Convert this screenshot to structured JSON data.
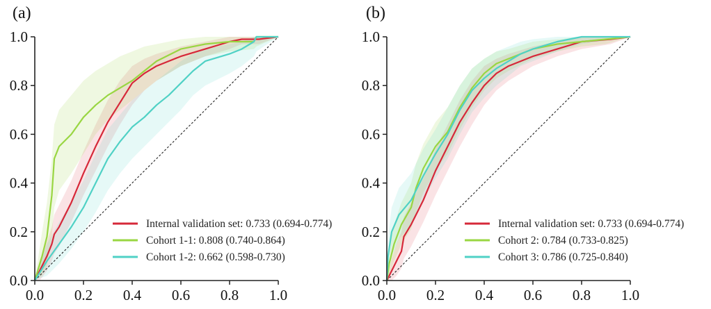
{
  "chart_data": [
    {
      "type": "line",
      "panel_label": "(a)",
      "title": "",
      "xlabel": "",
      "ylabel": "",
      "xlim": [
        0,
        1
      ],
      "ylim": [
        0,
        1
      ],
      "xticks": [
        "0.0",
        "0.2",
        "0.4",
        "0.6",
        "0.8",
        "1.0"
      ],
      "yticks": [
        "0.0",
        "0.2",
        "0.4",
        "0.6",
        "0.8",
        "1.0"
      ],
      "grid": false,
      "legend_position": "bottom-right",
      "reference_line": "diagonal-dashed",
      "series": [
        {
          "name": "Internal validation set: 0.733 (0.694-0.774)",
          "color": "#d62839",
          "x": [
            0,
            0.02,
            0.05,
            0.07,
            0.08,
            0.1,
            0.15,
            0.2,
            0.25,
            0.3,
            0.35,
            0.4,
            0.45,
            0.5,
            0.6,
            0.7,
            0.8,
            0.85,
            0.92,
            1
          ],
          "y": [
            0,
            0.04,
            0.1,
            0.15,
            0.19,
            0.22,
            0.32,
            0.44,
            0.55,
            0.65,
            0.73,
            0.81,
            0.85,
            0.88,
            0.92,
            0.95,
            0.98,
            0.99,
            0.99,
            1
          ],
          "ci_lower": [
            0,
            0.0,
            0.04,
            0.08,
            0.11,
            0.14,
            0.24,
            0.35,
            0.45,
            0.55,
            0.64,
            0.72,
            0.78,
            0.82,
            0.88,
            0.92,
            0.95,
            0.97,
            0.97,
            1
          ],
          "ci_upper": [
            0,
            0.08,
            0.16,
            0.22,
            0.27,
            0.31,
            0.41,
            0.53,
            0.64,
            0.74,
            0.82,
            0.88,
            0.91,
            0.93,
            0.96,
            0.98,
            1,
            1,
            1,
            1
          ]
        },
        {
          "name": "Cohort 1-1: 0.808 (0.740-0.864)",
          "color": "#99d642",
          "x": [
            0,
            0.03,
            0.05,
            0.07,
            0.08,
            0.1,
            0.15,
            0.2,
            0.25,
            0.3,
            0.35,
            0.4,
            0.45,
            0.5,
            0.6,
            0.7,
            0.8,
            0.9,
            0.91,
            1
          ],
          "y": [
            0,
            0.1,
            0.18,
            0.35,
            0.5,
            0.55,
            0.6,
            0.67,
            0.72,
            0.76,
            0.79,
            0.82,
            0.86,
            0.9,
            0.95,
            0.97,
            0.98,
            0.98,
            1,
            1
          ],
          "ci_lower": [
            0,
            0.02,
            0.06,
            0.18,
            0.3,
            0.37,
            0.44,
            0.52,
            0.6,
            0.66,
            0.7,
            0.74,
            0.78,
            0.82,
            0.88,
            0.92,
            0.94,
            0.95,
            0.96,
            1
          ],
          "ci_upper": [
            0,
            0.2,
            0.32,
            0.5,
            0.64,
            0.7,
            0.76,
            0.82,
            0.86,
            0.89,
            0.92,
            0.94,
            0.96,
            0.97,
            0.99,
            1,
            1,
            1,
            1,
            1
          ]
        },
        {
          "name": "Cohort 1-2: 0.662 (0.598-0.730)",
          "color": "#4fd1c5",
          "x": [
            0,
            0.05,
            0.1,
            0.15,
            0.2,
            0.25,
            0.3,
            0.35,
            0.4,
            0.45,
            0.5,
            0.55,
            0.6,
            0.65,
            0.7,
            0.8,
            0.85,
            0.9,
            0.91,
            1
          ],
          "y": [
            0,
            0.08,
            0.15,
            0.22,
            0.3,
            0.4,
            0.5,
            0.57,
            0.63,
            0.67,
            0.72,
            0.76,
            0.81,
            0.86,
            0.9,
            0.93,
            0.95,
            0.98,
            1,
            1
          ],
          "ci_lower": [
            0,
            0.02,
            0.07,
            0.13,
            0.2,
            0.28,
            0.37,
            0.44,
            0.5,
            0.55,
            0.6,
            0.65,
            0.7,
            0.76,
            0.8,
            0.85,
            0.88,
            0.92,
            0.94,
            1
          ],
          "ci_upper": [
            0,
            0.15,
            0.24,
            0.32,
            0.41,
            0.52,
            0.62,
            0.68,
            0.74,
            0.78,
            0.82,
            0.86,
            0.9,
            0.93,
            0.95,
            0.97,
            0.98,
            1,
            1,
            1
          ]
        }
      ]
    },
    {
      "type": "line",
      "panel_label": "(b)",
      "title": "",
      "xlabel": "",
      "ylabel": "",
      "xlim": [
        0,
        1
      ],
      "ylim": [
        0,
        1
      ],
      "xticks": [
        "0.0",
        "0.2",
        "0.4",
        "0.6",
        "0.8",
        "1.0"
      ],
      "yticks": [
        "0.0",
        "0.2",
        "0.4",
        "0.6",
        "0.8",
        "1.0"
      ],
      "grid": false,
      "legend_position": "bottom-right",
      "reference_line": "diagonal-dashed",
      "series": [
        {
          "name": "Internal validation set: 0.733 (0.694-0.774)",
          "color": "#d62839",
          "x": [
            0,
            0.02,
            0.04,
            0.06,
            0.07,
            0.1,
            0.15,
            0.2,
            0.25,
            0.3,
            0.35,
            0.4,
            0.45,
            0.5,
            0.6,
            0.7,
            0.8,
            0.92,
            1
          ],
          "y": [
            0,
            0.04,
            0.08,
            0.12,
            0.18,
            0.23,
            0.33,
            0.45,
            0.55,
            0.65,
            0.73,
            0.8,
            0.85,
            0.88,
            0.92,
            0.95,
            0.98,
            0.99,
            1
          ],
          "ci_lower": [
            0,
            0.0,
            0.02,
            0.05,
            0.09,
            0.14,
            0.24,
            0.35,
            0.45,
            0.55,
            0.64,
            0.72,
            0.78,
            0.82,
            0.88,
            0.92,
            0.95,
            0.97,
            1
          ],
          "ci_upper": [
            0,
            0.09,
            0.15,
            0.2,
            0.26,
            0.32,
            0.42,
            0.54,
            0.64,
            0.74,
            0.82,
            0.88,
            0.91,
            0.93,
            0.96,
            0.98,
            1,
            1,
            1
          ]
        },
        {
          "name": "Cohort 2: 0.784 (0.733-0.825)",
          "color": "#99d642",
          "x": [
            0,
            0.01,
            0.03,
            0.06,
            0.1,
            0.12,
            0.15,
            0.2,
            0.25,
            0.3,
            0.35,
            0.4,
            0.45,
            0.5,
            0.6,
            0.7,
            0.8,
            0.9,
            1
          ],
          "y": [
            0,
            0.07,
            0.15,
            0.23,
            0.3,
            0.38,
            0.46,
            0.55,
            0.61,
            0.71,
            0.79,
            0.85,
            0.89,
            0.91,
            0.95,
            0.97,
            0.98,
            0.99,
            1
          ],
          "ci_lower": [
            0,
            0.02,
            0.08,
            0.15,
            0.21,
            0.28,
            0.36,
            0.45,
            0.52,
            0.62,
            0.71,
            0.78,
            0.83,
            0.86,
            0.91,
            0.94,
            0.96,
            0.97,
            1
          ],
          "ci_upper": [
            0,
            0.13,
            0.23,
            0.32,
            0.4,
            0.48,
            0.56,
            0.65,
            0.71,
            0.8,
            0.87,
            0.91,
            0.94,
            0.95,
            0.98,
            0.99,
            1,
            1,
            1
          ]
        },
        {
          "name": "Cohort 3: 0.786 (0.725-0.840)",
          "color": "#4fd1c5",
          "x": [
            0,
            0.005,
            0.02,
            0.05,
            0.1,
            0.15,
            0.2,
            0.25,
            0.3,
            0.35,
            0.4,
            0.45,
            0.5,
            0.55,
            0.6,
            0.7,
            0.8,
            1
          ],
          "y": [
            0,
            0.1,
            0.2,
            0.27,
            0.33,
            0.43,
            0.52,
            0.6,
            0.7,
            0.78,
            0.83,
            0.87,
            0.9,
            0.93,
            0.95,
            0.98,
            1,
            1
          ],
          "ci_lower": [
            0,
            0.03,
            0.1,
            0.17,
            0.23,
            0.33,
            0.42,
            0.5,
            0.6,
            0.69,
            0.75,
            0.8,
            0.84,
            0.88,
            0.9,
            0.94,
            0.97,
            1
          ],
          "ci_upper": [
            0,
            0.18,
            0.3,
            0.38,
            0.44,
            0.54,
            0.62,
            0.71,
            0.8,
            0.87,
            0.91,
            0.94,
            0.96,
            0.98,
            0.99,
            1,
            1,
            1
          ]
        }
      ]
    }
  ]
}
